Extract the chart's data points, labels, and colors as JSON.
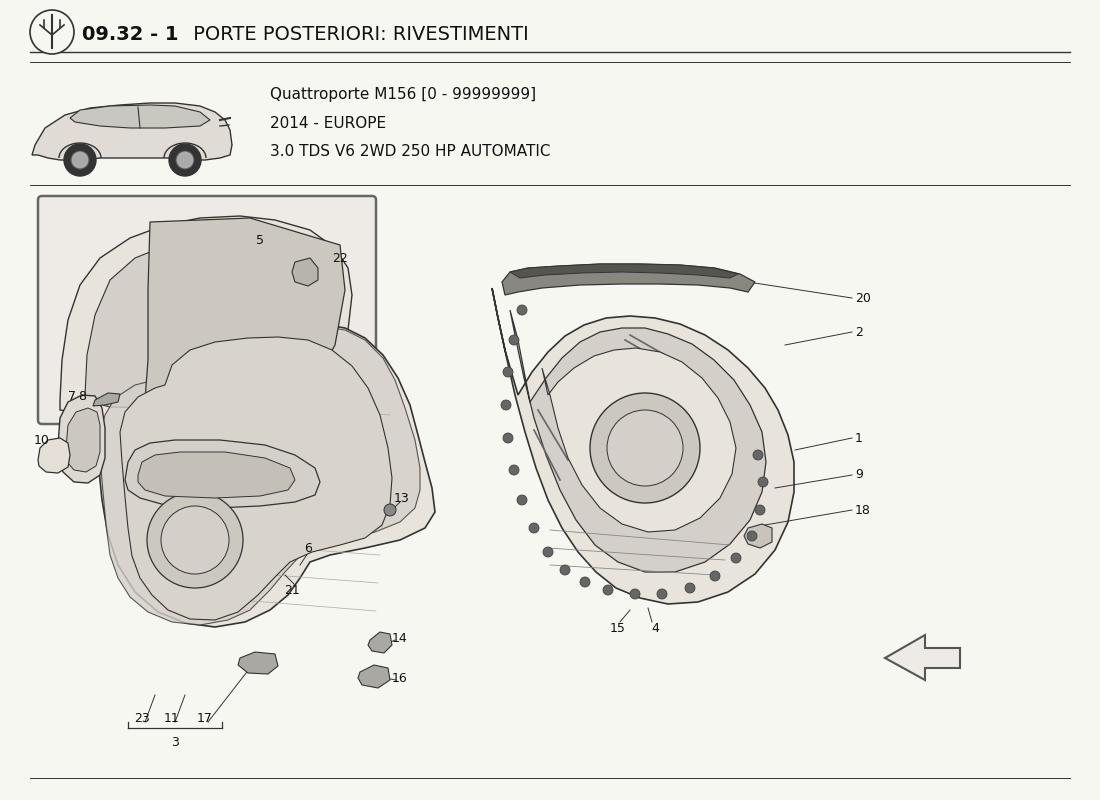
{
  "title_bold": "09.32 - 1",
  "title_rest": " PORTE POSTERIORI: RIVESTIMENTI",
  "subtitle_lines": [
    "Quattroporte M156 [0 - 99999999]",
    "2014 - EUROPE",
    "3.0 TDS V6 2WD 250 HP AUTOMATIC"
  ],
  "bg_color": "#f7f7f2",
  "text_color": "#111111",
  "line_color": "#333333",
  "part_color_outer": "#e8e4dc",
  "part_color_inner": "#d4cfc8",
  "part_color_dark": "#b0aba4",
  "inset_bg": "#eeebe6"
}
